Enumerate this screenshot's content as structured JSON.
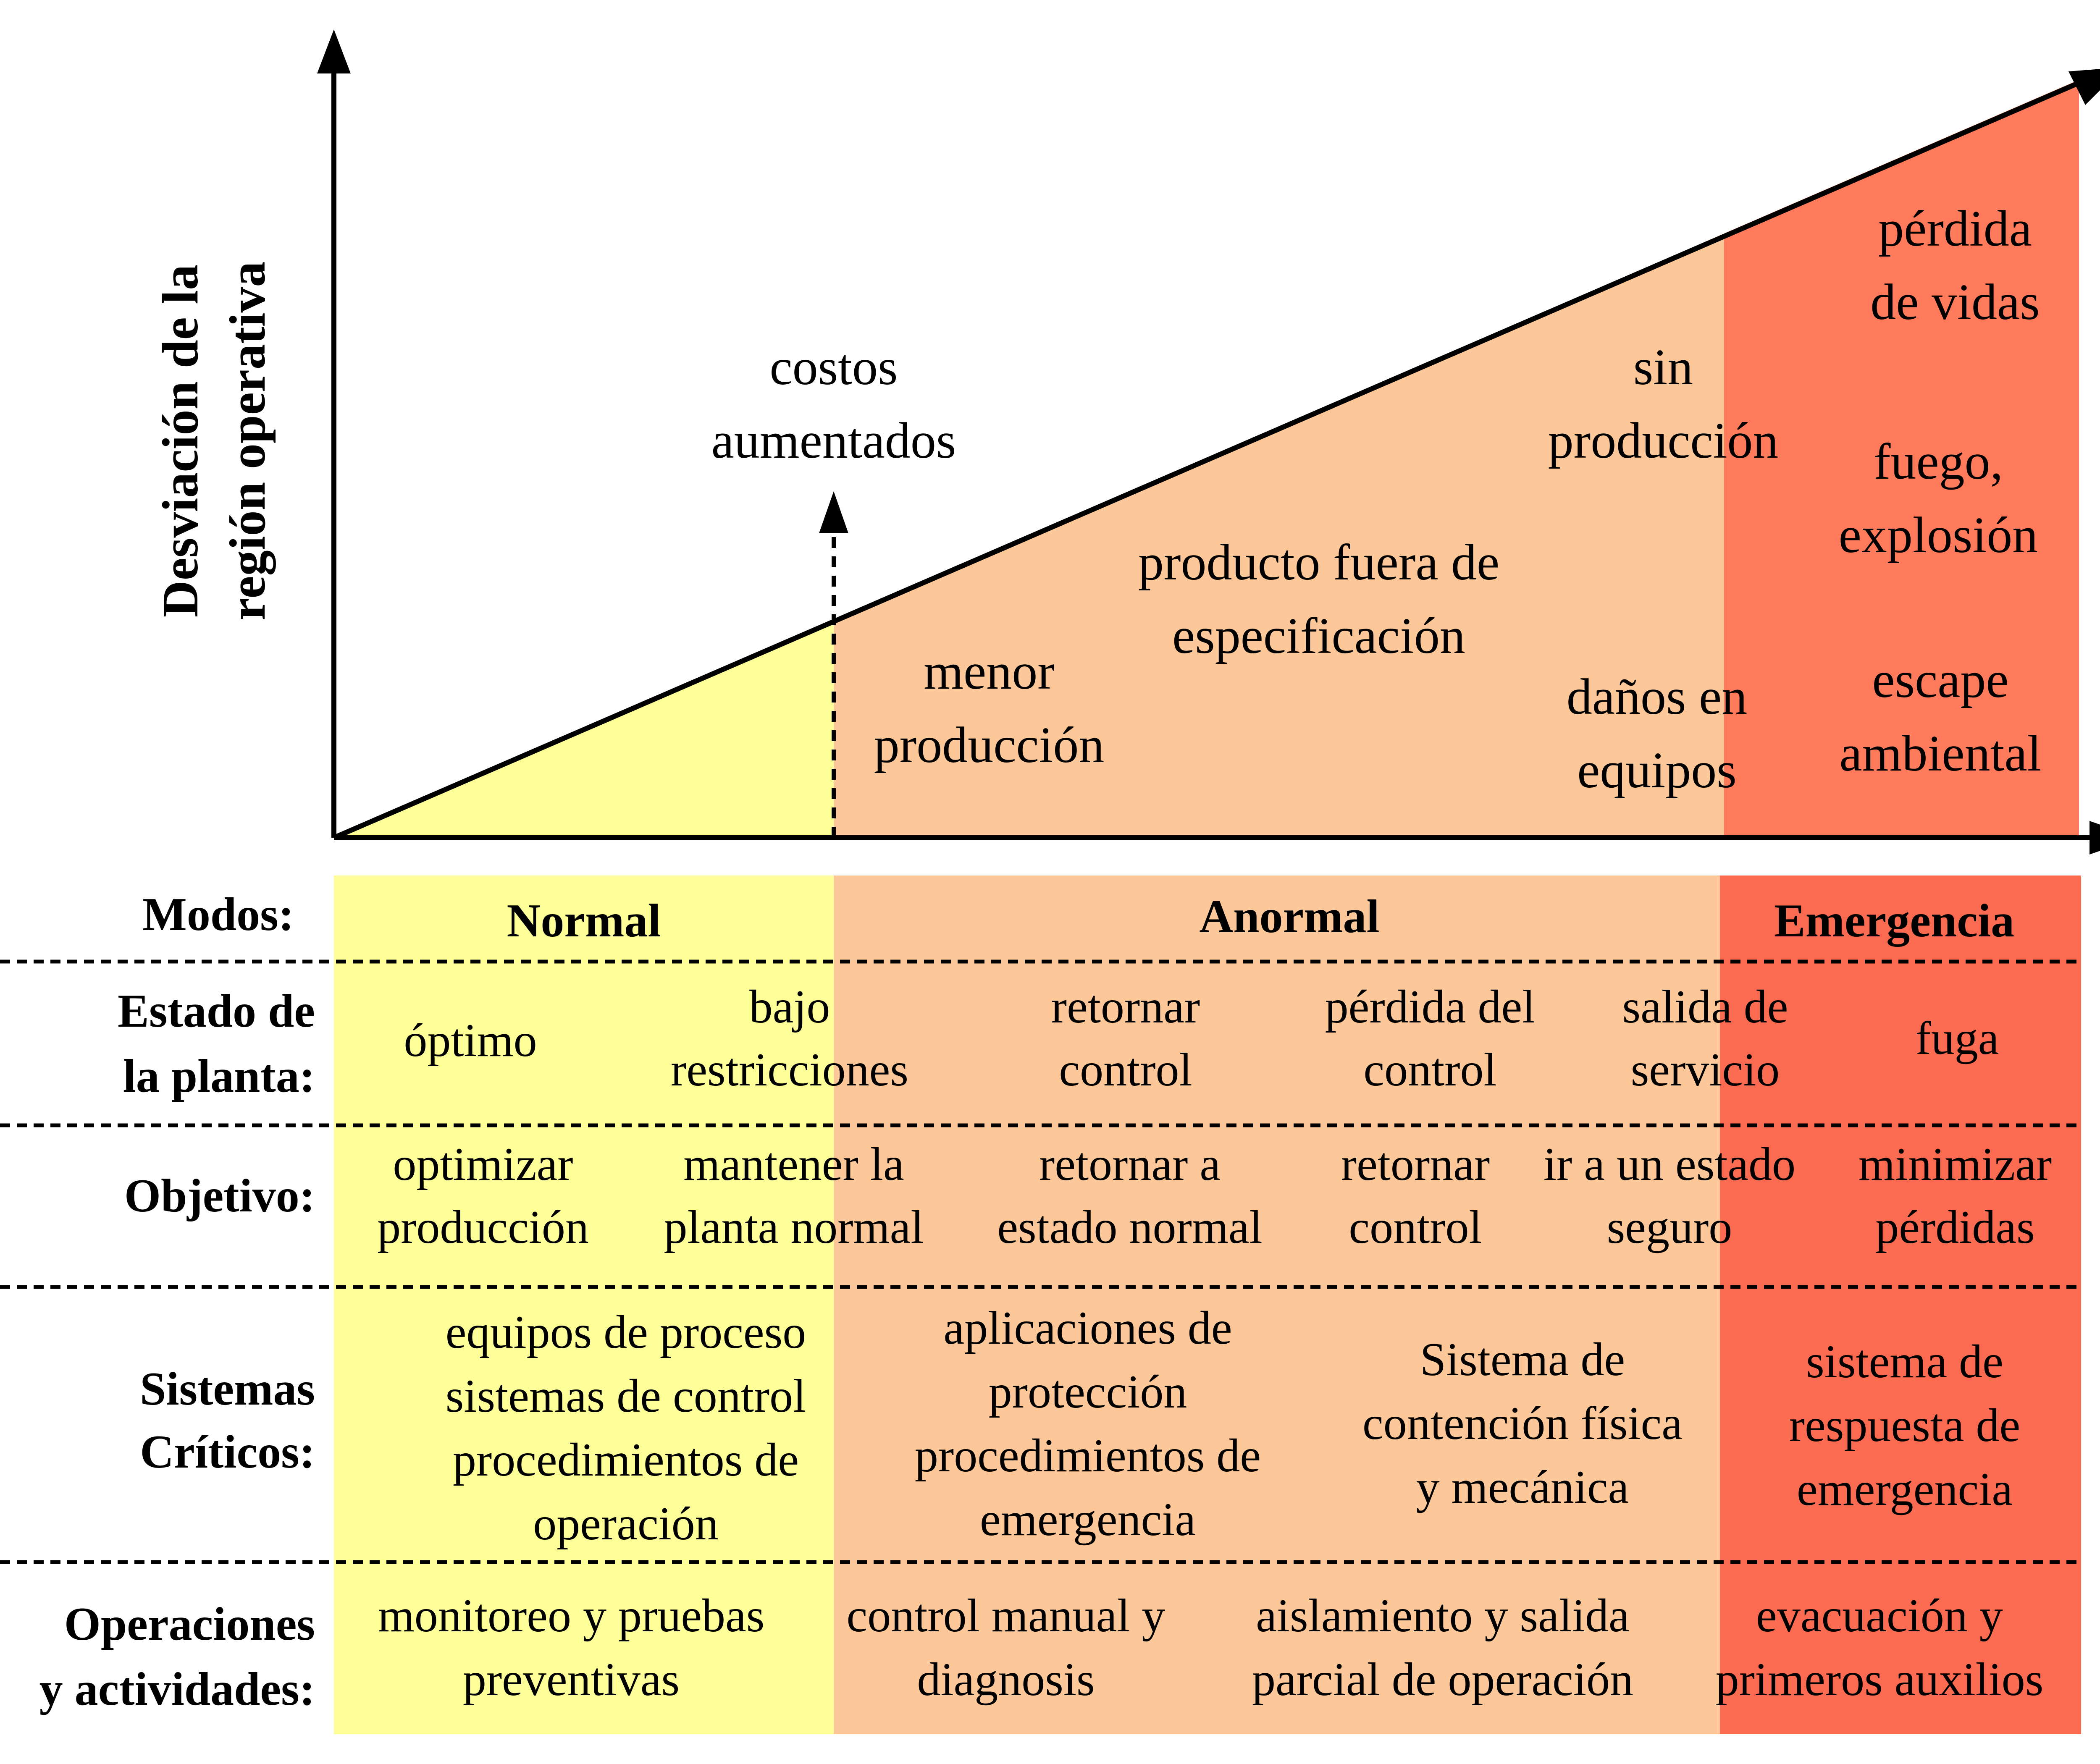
{
  "colors": {
    "normal": "#ffff99",
    "abnormal": "#fdc899",
    "emergency": "#ff7b5b",
    "emergency_table": "#fa6b52"
  },
  "axis": {
    "y_label_line1": "Desviación de la",
    "y_label_line2": "región operativa"
  },
  "chart_labels": {
    "costos": [
      "costos",
      "aumentados"
    ],
    "menor": [
      "menor",
      "producción"
    ],
    "producto": [
      "producto fuera de",
      "especificación"
    ],
    "sin": [
      "sin",
      "producción"
    ],
    "danos": [
      "daños en",
      "equipos"
    ],
    "perdida": [
      "pérdida",
      "de vidas"
    ],
    "fuego": [
      "fuego,",
      "explosión"
    ],
    "escape": [
      "escape",
      "ambiental"
    ]
  },
  "table": {
    "modos_label": "Modos:",
    "modes": {
      "normal": "Normal",
      "anormal": "Anormal",
      "emergencia": "Emergencia"
    },
    "estado_label": [
      "Estado de",
      "la planta:"
    ],
    "estado": {
      "optimo": [
        "óptimo"
      ],
      "bajo": [
        "bajo",
        "restricciones"
      ],
      "retornar": [
        "retornar",
        "control"
      ],
      "perdida": [
        "pérdida del",
        "control"
      ],
      "salida": [
        "salida de",
        "servicio"
      ],
      "fuga": [
        "fuga"
      ]
    },
    "objetivo_label": [
      "Objetivo:"
    ],
    "objetivo": {
      "optimizar": [
        "optimizar",
        "producción"
      ],
      "mantener": [
        "mantener la",
        "planta normal"
      ],
      "retornar_a": [
        "retornar a",
        "estado normal"
      ],
      "retornar_control": [
        "retornar",
        "control"
      ],
      "ir": [
        "ir a un estado",
        "seguro"
      ],
      "minimizar": [
        "minimizar",
        "pérdidas"
      ]
    },
    "sistemas_label": [
      "Sistemas",
      "Críticos:"
    ],
    "sistemas": {
      "equipos": [
        "equipos de proceso",
        "sistemas de control",
        "procedimientos de",
        "operación"
      ],
      "aplicaciones": [
        "aplicaciones de",
        "protección",
        "procedimientos de",
        "emergencia"
      ],
      "contencion": [
        "Sistema de",
        "contención física",
        "y mecánica"
      ],
      "respuesta": [
        "sistema de",
        "respuesta de",
        "emergencia"
      ]
    },
    "operaciones_label": [
      "Operaciones",
      "y actividades:"
    ],
    "operaciones": {
      "monitoreo": [
        "monitoreo y pruebas",
        "preventivas"
      ],
      "control": [
        "control manual y",
        "diagnosis"
      ],
      "aislamiento": [
        "aislamiento y salida",
        "parcial de operación"
      ],
      "evacuacion": [
        "evacuación y",
        "primeros auxilios"
      ]
    }
  }
}
